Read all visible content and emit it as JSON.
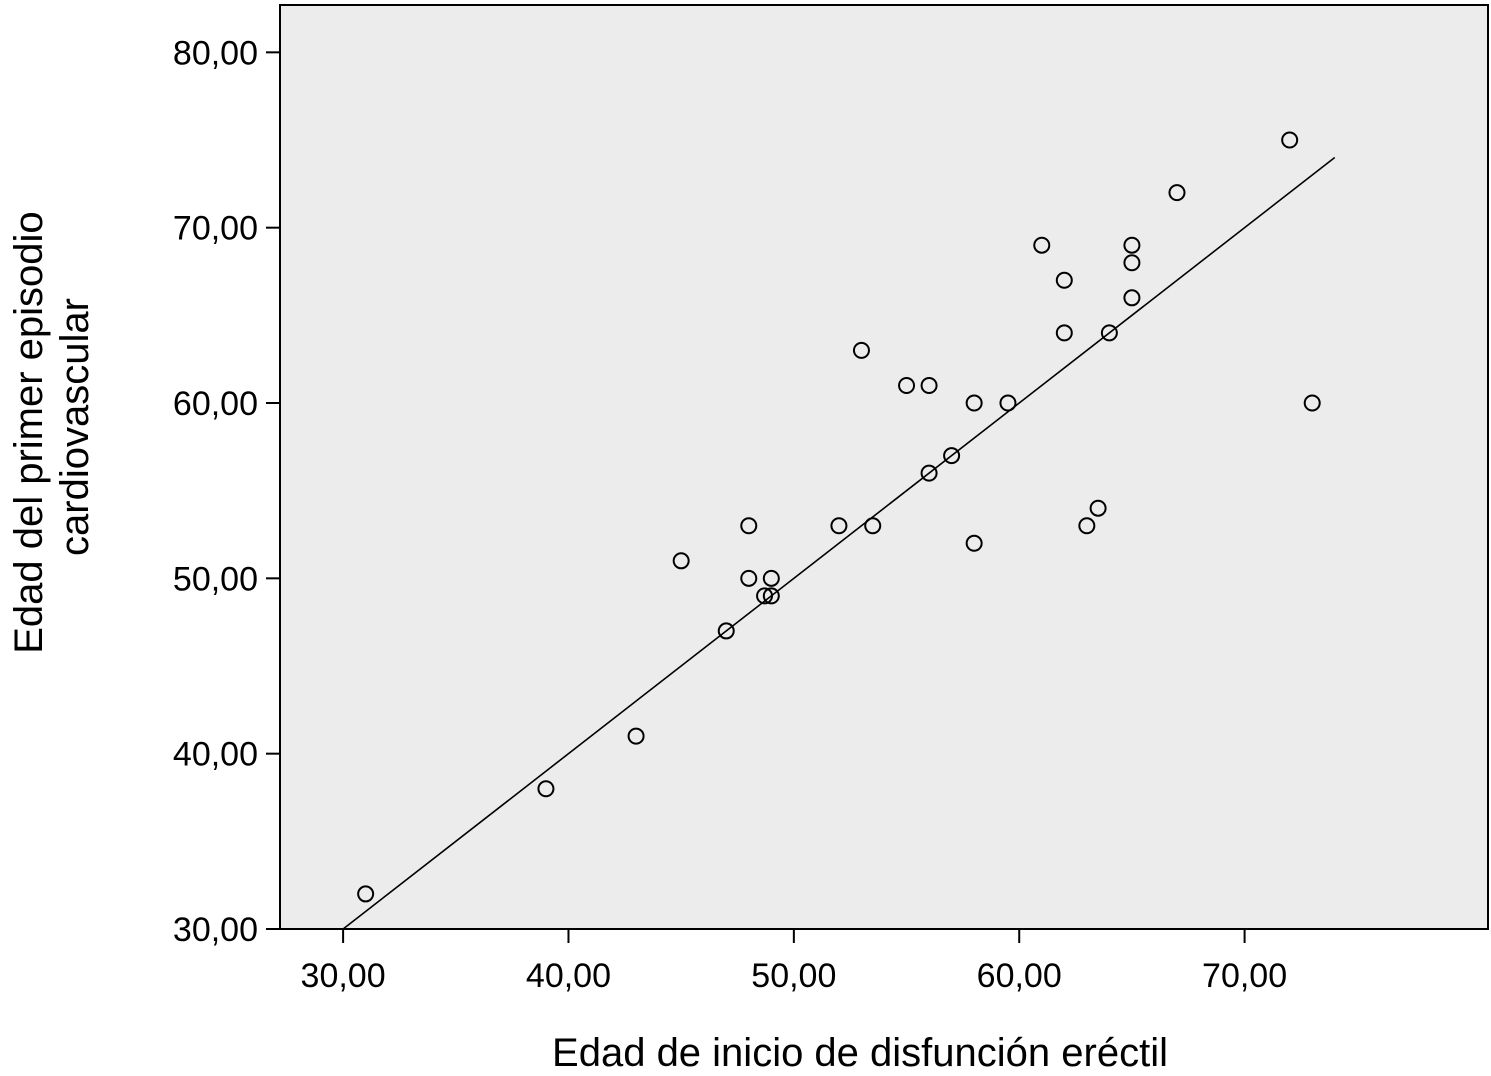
{
  "chart_data": {
    "type": "scatter",
    "title": "",
    "xlabel": "Edad de inicio de disfunción eréctil",
    "ylabel": [
      "Edad del primer episodio",
      "cardiovascular"
    ],
    "xlim": [
      27.2,
      80.8
    ],
    "ylim": [
      30,
      82.7
    ],
    "x_ticks": [
      30,
      40,
      50,
      60,
      70
    ],
    "x_tick_labels": [
      "30,00",
      "40,00",
      "50,00",
      "60,00",
      "70,00"
    ],
    "y_ticks": [
      30,
      40,
      50,
      60,
      70,
      80
    ],
    "y_tick_labels": [
      "30,00",
      "40,00",
      "50,00",
      "60,00",
      "70,00",
      "80,00"
    ],
    "grid": false,
    "plot_background": "#ececec",
    "marker_color": "#000000",
    "line_color": "#000000",
    "series": [
      {
        "points": [
          [
            31,
            32
          ],
          [
            39,
            38
          ],
          [
            43,
            41
          ],
          [
            45,
            51
          ],
          [
            47,
            47
          ],
          [
            48,
            53
          ],
          [
            48,
            50
          ],
          [
            48.7,
            49
          ],
          [
            49,
            49
          ],
          [
            49,
            50
          ],
          [
            52,
            53
          ],
          [
            53,
            63
          ],
          [
            53.5,
            53
          ],
          [
            55,
            61
          ],
          [
            56,
            61
          ],
          [
            56,
            56
          ],
          [
            57,
            57
          ],
          [
            58,
            60
          ],
          [
            58,
            52
          ],
          [
            59.5,
            60
          ],
          [
            61,
            69
          ],
          [
            62,
            67
          ],
          [
            62,
            64
          ],
          [
            63,
            53
          ],
          [
            63.5,
            54
          ],
          [
            64,
            64
          ],
          [
            65,
            69
          ],
          [
            65,
            68
          ],
          [
            65,
            66
          ],
          [
            67,
            72
          ],
          [
            72,
            75
          ],
          [
            73,
            60
          ]
        ]
      }
    ],
    "fit_line": {
      "x": [
        30,
        74
      ],
      "y": [
        30,
        74
      ]
    }
  }
}
